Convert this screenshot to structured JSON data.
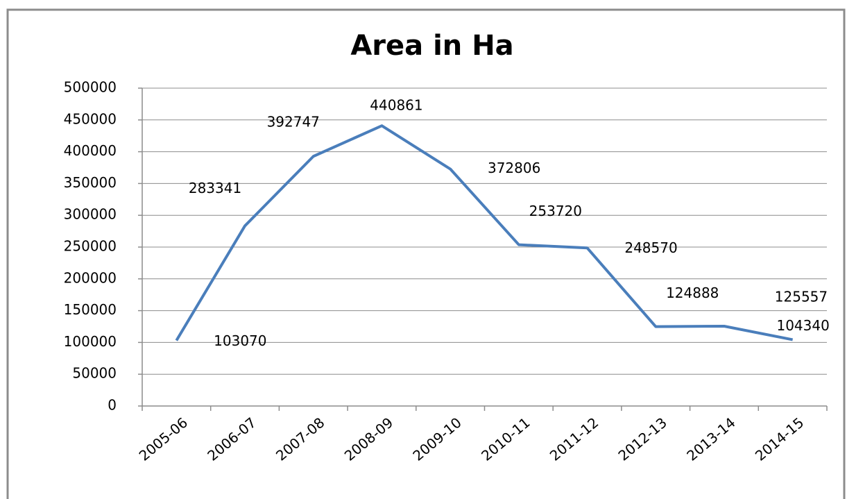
{
  "chart_data": {
    "type": "line",
    "title": "Area in Ha",
    "categories": [
      "2005-06",
      "2006-07",
      "2007-08",
      "2008-09",
      "2009-10",
      "2010-11",
      "2011-12",
      "2012-13",
      "2013-14",
      "2014-15"
    ],
    "series": [
      {
        "name": "Area in Ha",
        "color": "#4a7ebb",
        "values": [
          103070,
          283341,
          392747,
          440861,
          372806,
          253720,
          248570,
          124888,
          125557,
          104340
        ]
      }
    ],
    "ylim": [
      0,
      500000
    ],
    "yticks": [
      0,
      50000,
      100000,
      150000,
      200000,
      250000,
      300000,
      350000,
      400000,
      450000,
      500000
    ],
    "grid": true
  }
}
